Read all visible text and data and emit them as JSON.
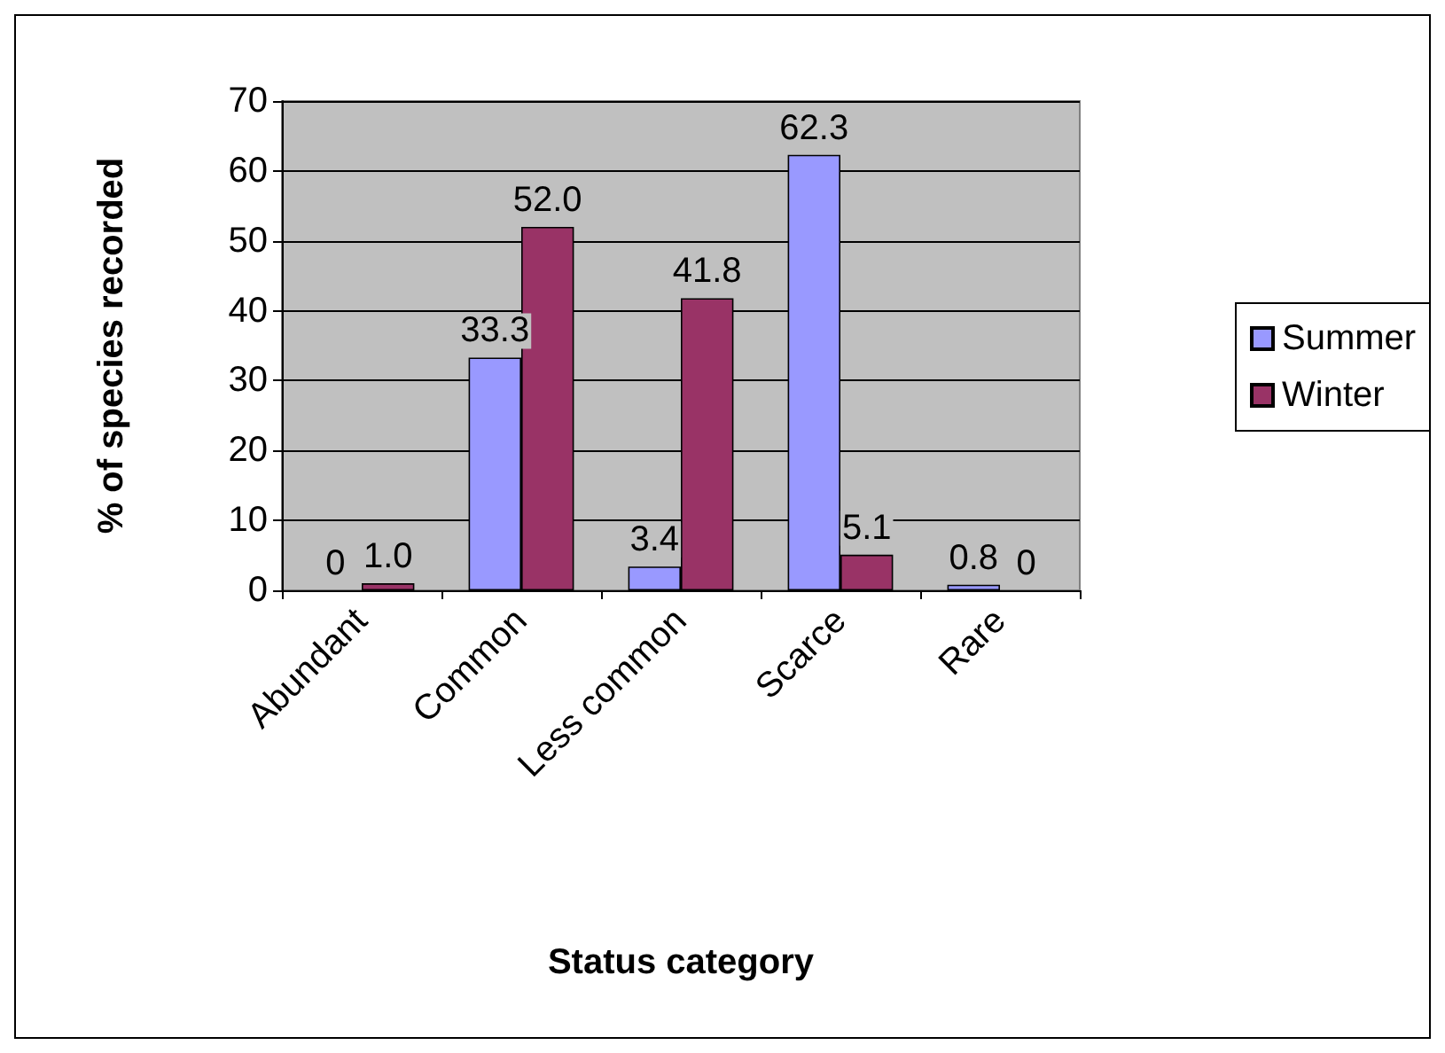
{
  "chart_data": {
    "type": "bar",
    "xlabel": "Status category",
    "ylabel": "% of species recorded",
    "categories": [
      "Abundant",
      "Common",
      "Less common",
      "Scarce",
      "Rare"
    ],
    "series": [
      {
        "name": "Summer",
        "color": "#9999ff",
        "values": [
          0,
          33.3,
          3.4,
          62.3,
          0.8
        ],
        "value_labels": [
          "0",
          "33.3",
          "3.4",
          "62.3",
          "0.8"
        ]
      },
      {
        "name": "Winter",
        "color": "#993366",
        "values": [
          1.0,
          52.0,
          41.8,
          5.1,
          0
        ],
        "value_labels": [
          "1.0",
          "52.0",
          "41.8",
          "5.1",
          "0"
        ]
      }
    ],
    "ylim": [
      0,
      70
    ],
    "yticks": [
      0,
      10,
      20,
      30,
      40,
      50,
      60,
      70
    ],
    "grid": "y",
    "legend": "right"
  }
}
